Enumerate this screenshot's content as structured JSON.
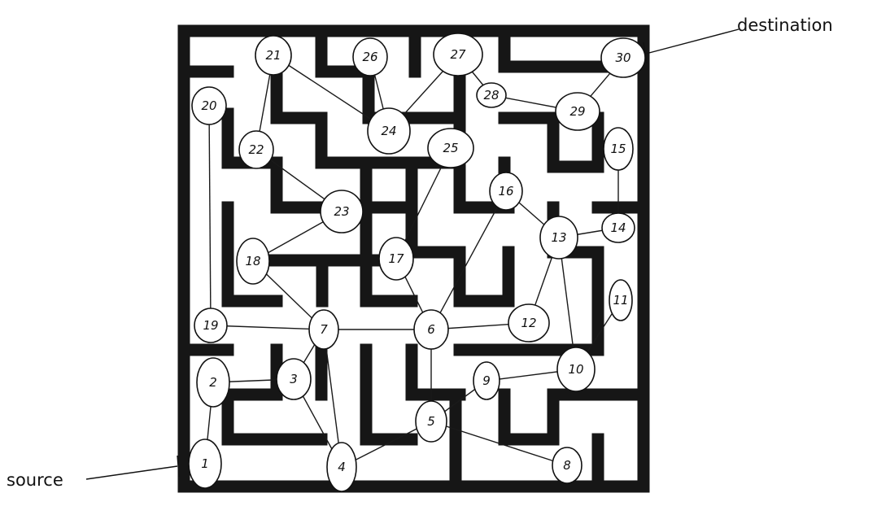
{
  "labels": {
    "source": "source",
    "destination": "destination"
  },
  "colors": {
    "source_fill": "#e89b9b",
    "destination_fill": "#8fcf8f",
    "wall": "#161616"
  },
  "graph": {
    "source_node": "1",
    "destination_node": "30",
    "nodes": [
      "1",
      "2",
      "3",
      "4",
      "5",
      "6",
      "7",
      "8",
      "9",
      "10",
      "11",
      "12",
      "13",
      "14",
      "15",
      "16",
      "17",
      "18",
      "19",
      "20",
      "21",
      "22",
      "23",
      "24",
      "25",
      "26",
      "27",
      "28",
      "29",
      "30"
    ],
    "edges": [
      [
        "1",
        "2"
      ],
      [
        "2",
        "3"
      ],
      [
        "3",
        "7"
      ],
      [
        "3",
        "4"
      ],
      [
        "4",
        "7"
      ],
      [
        "4",
        "5"
      ],
      [
        "5",
        "6"
      ],
      [
        "5",
        "9"
      ],
      [
        "5",
        "8"
      ],
      [
        "9",
        "10"
      ],
      [
        "10",
        "11"
      ],
      [
        "10",
        "13"
      ],
      [
        "13",
        "12"
      ],
      [
        "13",
        "14"
      ],
      [
        "13",
        "16"
      ],
      [
        "14",
        "15"
      ],
      [
        "16",
        "6"
      ],
      [
        "6",
        "12"
      ],
      [
        "6",
        "17"
      ],
      [
        "6",
        "7"
      ],
      [
        "17",
        "25"
      ],
      [
        "7",
        "19"
      ],
      [
        "7",
        "18"
      ],
      [
        "18",
        "23"
      ],
      [
        "23",
        "22"
      ],
      [
        "22",
        "21"
      ],
      [
        "21",
        "24"
      ],
      [
        "24",
        "26"
      ],
      [
        "24",
        "27"
      ],
      [
        "27",
        "28"
      ],
      [
        "28",
        "29"
      ],
      [
        "29",
        "30"
      ],
      [
        "19",
        "20"
      ]
    ]
  }
}
